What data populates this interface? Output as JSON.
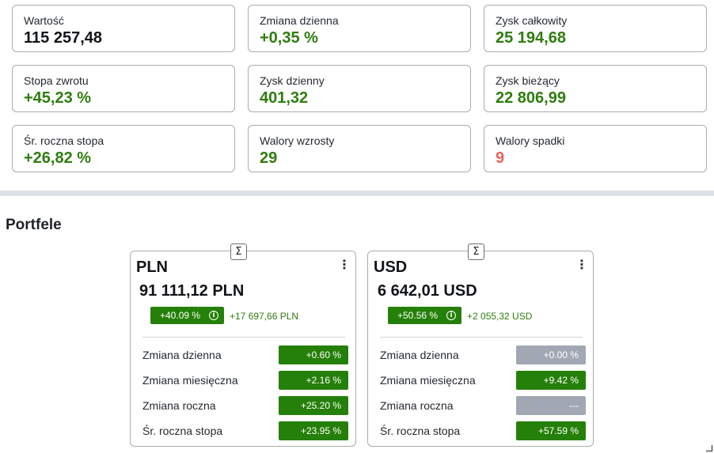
{
  "stats": [
    {
      "label": "Wartość",
      "value": "115 257,48",
      "tone": "dark"
    },
    {
      "label": "Zmiana dzienna",
      "value": "+0,35 %",
      "tone": "green"
    },
    {
      "label": "Zysk całkowity",
      "value": "25 194,68",
      "tone": "green"
    },
    {
      "label": "Stopa zwrotu",
      "value": "+45,23 %",
      "tone": "green"
    },
    {
      "label": "Zysk dzienny",
      "value": "401,32",
      "tone": "green"
    },
    {
      "label": "Zysk bieżący",
      "value": "22 806,99",
      "tone": "green"
    },
    {
      "label": "Śr. roczna stopa",
      "value": "+26,82 %",
      "tone": "green"
    },
    {
      "label": "Walory wzrosty",
      "value": "29",
      "tone": "green"
    },
    {
      "label": "Walory spadki",
      "value": "9",
      "tone": "red"
    }
  ],
  "colors": {
    "green_text": "#2e7d0e",
    "red_text": "#e9645c",
    "green_badge": "#258009",
    "gray_badge": "#a2a8b3"
  },
  "portfolios_section": {
    "title": "Portfele"
  },
  "portfolios": [
    {
      "title": "PLN",
      "value": "91 111,12 PLN",
      "return_badge": "+40.09 %",
      "gain": "+17 697,66 PLN",
      "sigma_icon": "Σ",
      "menu_icon": "⋮",
      "info_icon": "i",
      "metrics": [
        {
          "label": "Zmiana dzienna",
          "value": "+0.60 %",
          "tone": "green"
        },
        {
          "label": "Zmiana miesięczna",
          "value": "+2.16 %",
          "tone": "green"
        },
        {
          "label": "Zmiana roczna",
          "value": "+25.20 %",
          "tone": "green"
        },
        {
          "label": "Śr. roczna stopa",
          "value": "+23.95 %",
          "tone": "green"
        }
      ]
    },
    {
      "title": "USD",
      "value": "6 642,01 USD",
      "return_badge": "+50.56 %",
      "gain": "+2 055,32 USD",
      "sigma_icon": "Σ",
      "menu_icon": "⋮",
      "info_icon": "i",
      "metrics": [
        {
          "label": "Zmiana dzienna",
          "value": "+0.00 %",
          "tone": "gray"
        },
        {
          "label": "Zmiana miesięczna",
          "value": "+9.42 %",
          "tone": "green"
        },
        {
          "label": "Zmiana roczna",
          "value": "---",
          "tone": "gray"
        },
        {
          "label": "Śr. roczna stopa",
          "value": "+57.59 %",
          "tone": "green"
        }
      ]
    }
  ]
}
